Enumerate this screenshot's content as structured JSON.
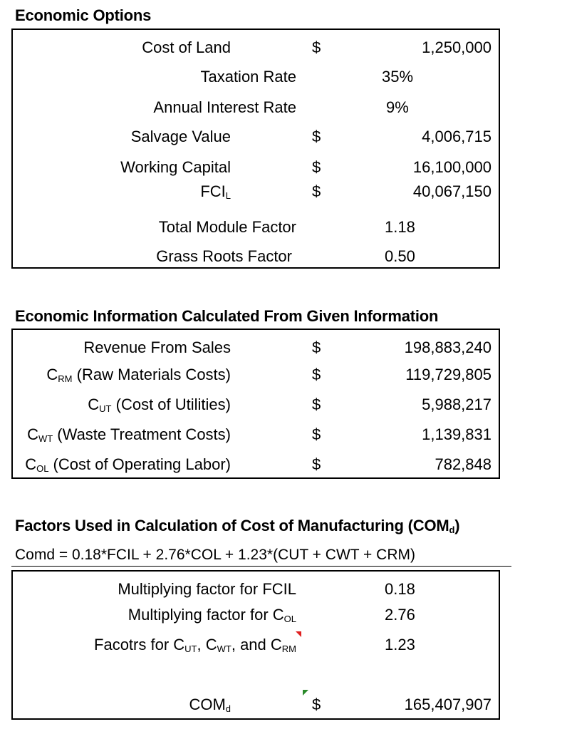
{
  "section1": {
    "title": "Economic Options",
    "rows": [
      {
        "label": "Cost of Land",
        "currency": "$",
        "value": "1,250,000"
      },
      {
        "label": "Taxation Rate",
        "currency": "",
        "value": "35%"
      },
      {
        "label": "Annual Interest Rate",
        "currency": "",
        "value": "9%"
      },
      {
        "label": "Salvage Value",
        "currency": "$",
        "value": "4,006,715"
      },
      {
        "label": "Working Capital",
        "currency": "$",
        "value": "16,100,000"
      },
      {
        "label_main": "FCI",
        "label_sub": "L",
        "currency": "$",
        "value": "40,067,150"
      },
      {
        "label": "Total Module Factor",
        "currency": "",
        "value": "1.18"
      },
      {
        "label": "Grass Roots Factor",
        "currency": "",
        "value": "0.50"
      }
    ]
  },
  "section2": {
    "title": "Economic Information Calculated From Given Information",
    "rows": [
      {
        "label": "Revenue From Sales",
        "currency": "$",
        "value": "198,883,240"
      },
      {
        "label_main": "C",
        "label_sub": "RM",
        "label_rest": " (Raw Materials Costs)",
        "currency": "$",
        "value": "119,729,805"
      },
      {
        "label_main": "C",
        "label_sub": "UT",
        "label_rest": " (Cost of Utilities)",
        "currency": "$",
        "value": "5,988,217"
      },
      {
        "label_main": "C",
        "label_sub": "WT",
        "label_rest": " (Waste Treatment Costs)",
        "currency": "$",
        "value": "1,139,831"
      },
      {
        "label_main": "C",
        "label_sub": "OL",
        "label_rest": " (Cost of Operating Labor)",
        "currency": "$",
        "value": "782,848"
      }
    ]
  },
  "section3": {
    "title_main": "Factors Used in Calculation of Cost of Manufacturing (COM",
    "title_sub": "d",
    "title_end": ")",
    "formula": "Comd = 0.18*FCIL + 2.76*COL + 1.23*(CUT + CWT + CRM)",
    "rows": [
      {
        "label": "Multiplying factor for FCIL",
        "currency": "",
        "value": "0.18"
      },
      {
        "label_main": "Multiplying factor for C",
        "label_sub": "OL",
        "currency": "",
        "value": "2.76"
      },
      {
        "label_a": "Facotrs for C",
        "sub_a": "UT",
        "label_b": ", C",
        "sub_b": "WT",
        "label_c": ", and C",
        "sub_c": "RM",
        "currency": "",
        "value": "1.23"
      },
      {
        "label_main": "COM",
        "label_sub": "d",
        "currency": "$",
        "value": "165,407,907"
      }
    ]
  }
}
